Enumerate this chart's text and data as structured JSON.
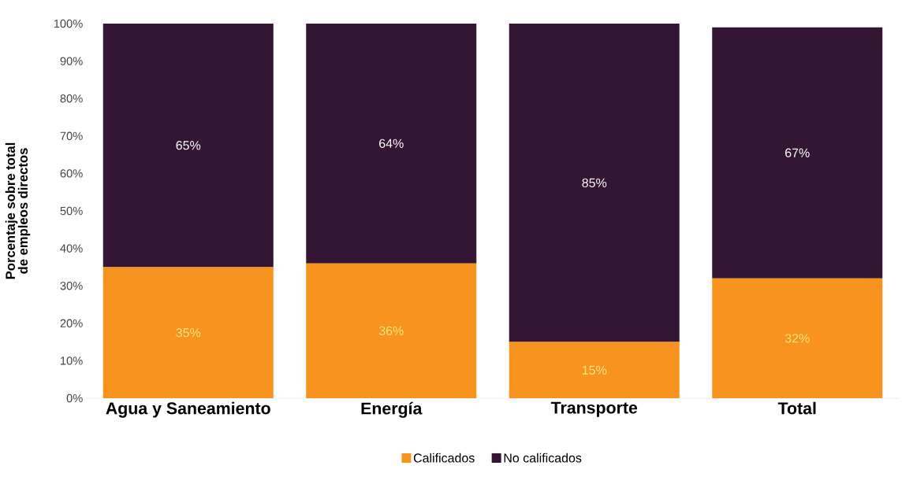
{
  "chart_data": {
    "type": "bar",
    "stacked": true,
    "ylabel": "Porcentaje sobre total de empleos directos",
    "categories": [
      "Agua y Saneamiento",
      "Energía",
      "Transporte",
      "Total"
    ],
    "series": [
      {
        "name": "Calificados",
        "color": "#f7931e",
        "values": [
          35,
          36,
          15,
          32
        ],
        "value_labels": [
          "35%",
          "36%",
          "15%",
          "32%"
        ]
      },
      {
        "name": "No calificados",
        "color": "#341533",
        "values": [
          65,
          64,
          85,
          67
        ],
        "value_labels": [
          "65%",
          "64%",
          "85%",
          "67%"
        ]
      }
    ],
    "ylim": [
      0,
      100
    ],
    "yticks": [
      {
        "value": 0,
        "label": "0%"
      },
      {
        "value": 10,
        "label": "10%"
      },
      {
        "value": 20,
        "label": "20%"
      },
      {
        "value": 30,
        "label": "30%"
      },
      {
        "value": 40,
        "label": "40%"
      },
      {
        "value": 50,
        "label": "50%"
      },
      {
        "value": 60,
        "label": "60%"
      },
      {
        "value": 70,
        "label": "70%"
      },
      {
        "value": 80,
        "label": "80%"
      },
      {
        "value": 90,
        "label": "90%"
      },
      {
        "value": 100,
        "label": "100%"
      }
    ],
    "legend": "bottom"
  }
}
